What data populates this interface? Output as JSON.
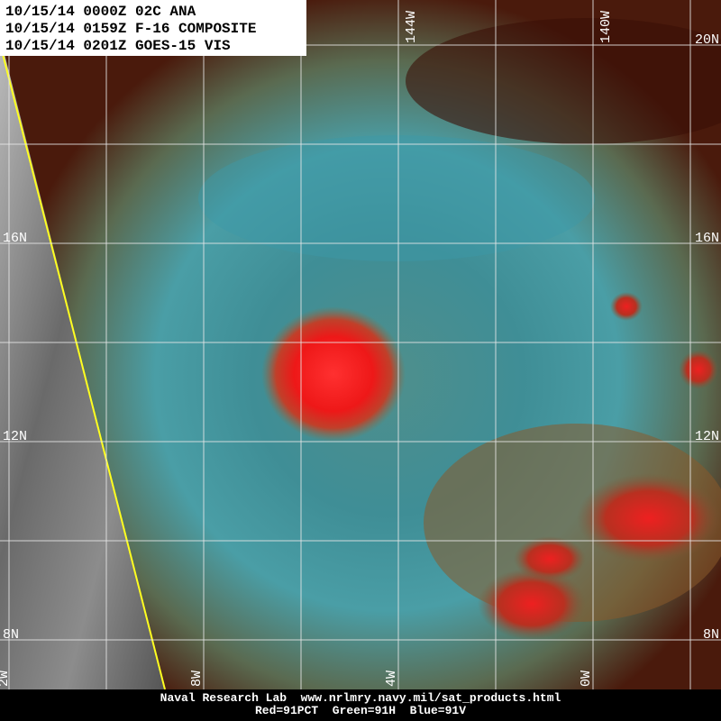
{
  "header": {
    "lines": [
      "10/15/14 0000Z 02C ANA",
      "10/15/14 0159Z F-16 COMPOSITE",
      "10/15/14 0201Z GOES-15 VIS"
    ]
  },
  "map": {
    "lat_labels_right": [
      "20N",
      "16N",
      "12N",
      "8N"
    ],
    "lat_labels_left": [
      "16N",
      "12N",
      "8N"
    ],
    "lon_labels_top": [
      "144W",
      "140W"
    ],
    "lon_labels_bottom": [
      "2W",
      "8W",
      "4W",
      "0W"
    ]
  },
  "footer": {
    "lines": [
      "Naval Research Lab  www.nrlmry.navy.mil/sat_products.html",
      "Red=91PCT  Green=91H  Blue=91V"
    ]
  }
}
